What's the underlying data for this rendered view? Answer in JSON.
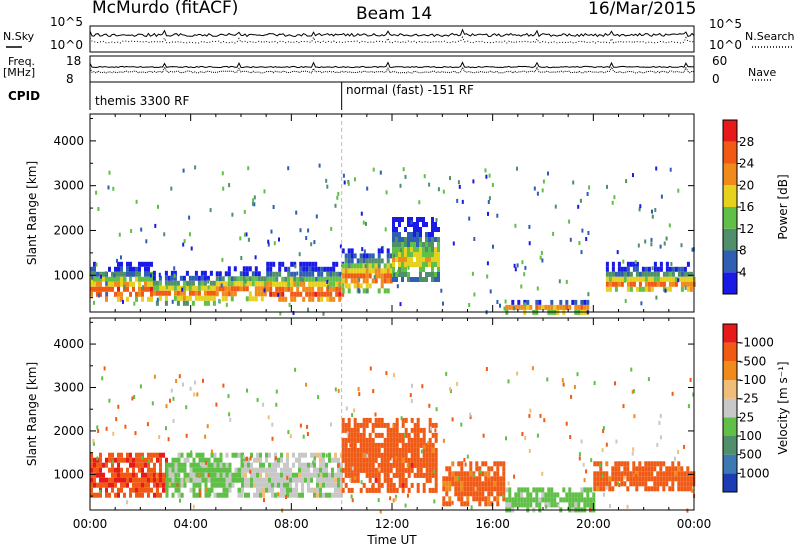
{
  "header": {
    "station": "McMurdo (fitACF)",
    "beam": "Beam 14",
    "date": "16/Mar/2015"
  },
  "status_panels": {
    "nsky_label": "N.Sky",
    "nsearch_label": "N.Search",
    "freq_label": "Freq.",
    "freq_unit": "[MHz]",
    "nave_label": "Nave",
    "cpid_label": "CPID",
    "noise_ticks_left": [
      "10^5",
      "10^0"
    ],
    "noise_ticks_right": [
      "10^5",
      "10^0"
    ],
    "freq_ticks": [
      "18",
      "8"
    ],
    "nave_ticks": [
      "60",
      "0"
    ],
    "cpid_segments": [
      "themis 3300 RF",
      "normal (fast) -151 RF"
    ],
    "cpid_switch_hour": 10.0
  },
  "colors": {
    "power": [
      "#1a1ae6",
      "#2f5fb3",
      "#4f8f6a",
      "#5fbf46",
      "#e6d21e",
      "#f08a1a",
      "#f05a14",
      "#e61a1a"
    ],
    "velocity": [
      "#1a3cb4",
      "#3c78b4",
      "#4f8f6a",
      "#5fbf46",
      "#c8c8c8",
      "#f0be78",
      "#f08a1a",
      "#f05a14",
      "#e61a1a"
    ]
  },
  "chart_data": [
    {
      "type": "heatmap",
      "name": "power",
      "title": "",
      "xlabel": "",
      "ylabel": "Slant Range [km]",
      "xlim": [
        0,
        24
      ],
      "ylim": [
        180,
        4600
      ],
      "yticks": [
        1000,
        2000,
        3000,
        4000
      ],
      "colorbar": {
        "label": "Power [dB]",
        "ticks": [
          "4",
          "8",
          "12",
          "16",
          "20",
          "24",
          "28"
        ],
        "range": [
          0,
          30
        ]
      },
      "bands": [
        {
          "x": [
            0.0,
            2.5
          ],
          "y": [
            500,
            1300
          ],
          "peak": 28,
          "peak_y": 700
        },
        {
          "x": [
            2.5,
            5.0
          ],
          "y": [
            400,
            1100
          ],
          "peak": 24,
          "peak_y": 650
        },
        {
          "x": [
            5.0,
            7.0
          ],
          "y": [
            500,
            1200
          ],
          "peak": 26,
          "peak_y": 700
        },
        {
          "x": [
            7.0,
            10.0
          ],
          "y": [
            450,
            1300
          ],
          "peak": 28,
          "peak_y": 650
        },
        {
          "x": [
            10.0,
            12.0
          ],
          "y": [
            700,
            1600
          ],
          "peak": 26,
          "peak_y": 1000
        },
        {
          "x": [
            12.0,
            13.8
          ],
          "y": [
            900,
            2300
          ],
          "peak": 20,
          "peak_y": 1400
        },
        {
          "x": [
            16.5,
            19.8
          ],
          "y": [
            200,
            450
          ],
          "peak": 28,
          "peak_y": 300
        },
        {
          "x": [
            20.5,
            24.0
          ],
          "y": [
            650,
            1300
          ],
          "peak": 24,
          "peak_y": 850
        }
      ]
    },
    {
      "type": "heatmap",
      "name": "velocity",
      "title": "",
      "xlabel": "Time UT",
      "ylabel": "Slant Range [km]",
      "xlim": [
        0,
        24
      ],
      "ylim": [
        180,
        4600
      ],
      "yticks": [
        1000,
        2000,
        3000,
        4000
      ],
      "xticks": [
        "00:00",
        "04:00",
        "08:00",
        "12:00",
        "16:00",
        "20:00",
        "00:00"
      ],
      "colorbar": {
        "label": "Velocity [m s^-1]",
        "ticks": [
          "1000",
          "500",
          "100",
          "25",
          "-25",
          "-100",
          "-500",
          "-1000"
        ]
      },
      "bands": [
        {
          "x": [
            0.0,
            3.0
          ],
          "y": [
            500,
            1500
          ],
          "vel": -400
        },
        {
          "x": [
            3.0,
            6.0
          ],
          "y": [
            500,
            1500
          ],
          "vel": 150
        },
        {
          "x": [
            6.0,
            10.0
          ],
          "y": [
            500,
            1500
          ],
          "vel": 80
        },
        {
          "x": [
            10.0,
            13.8
          ],
          "y": [
            600,
            2300
          ],
          "vel": -300
        },
        {
          "x": [
            14.0,
            16.5
          ],
          "y": [
            300,
            1300
          ],
          "vel": -200
        },
        {
          "x": [
            16.5,
            20.0
          ],
          "y": [
            200,
            700
          ],
          "vel": 200
        },
        {
          "x": [
            20.0,
            24.0
          ],
          "y": [
            650,
            1300
          ],
          "vel": -250
        }
      ]
    }
  ]
}
